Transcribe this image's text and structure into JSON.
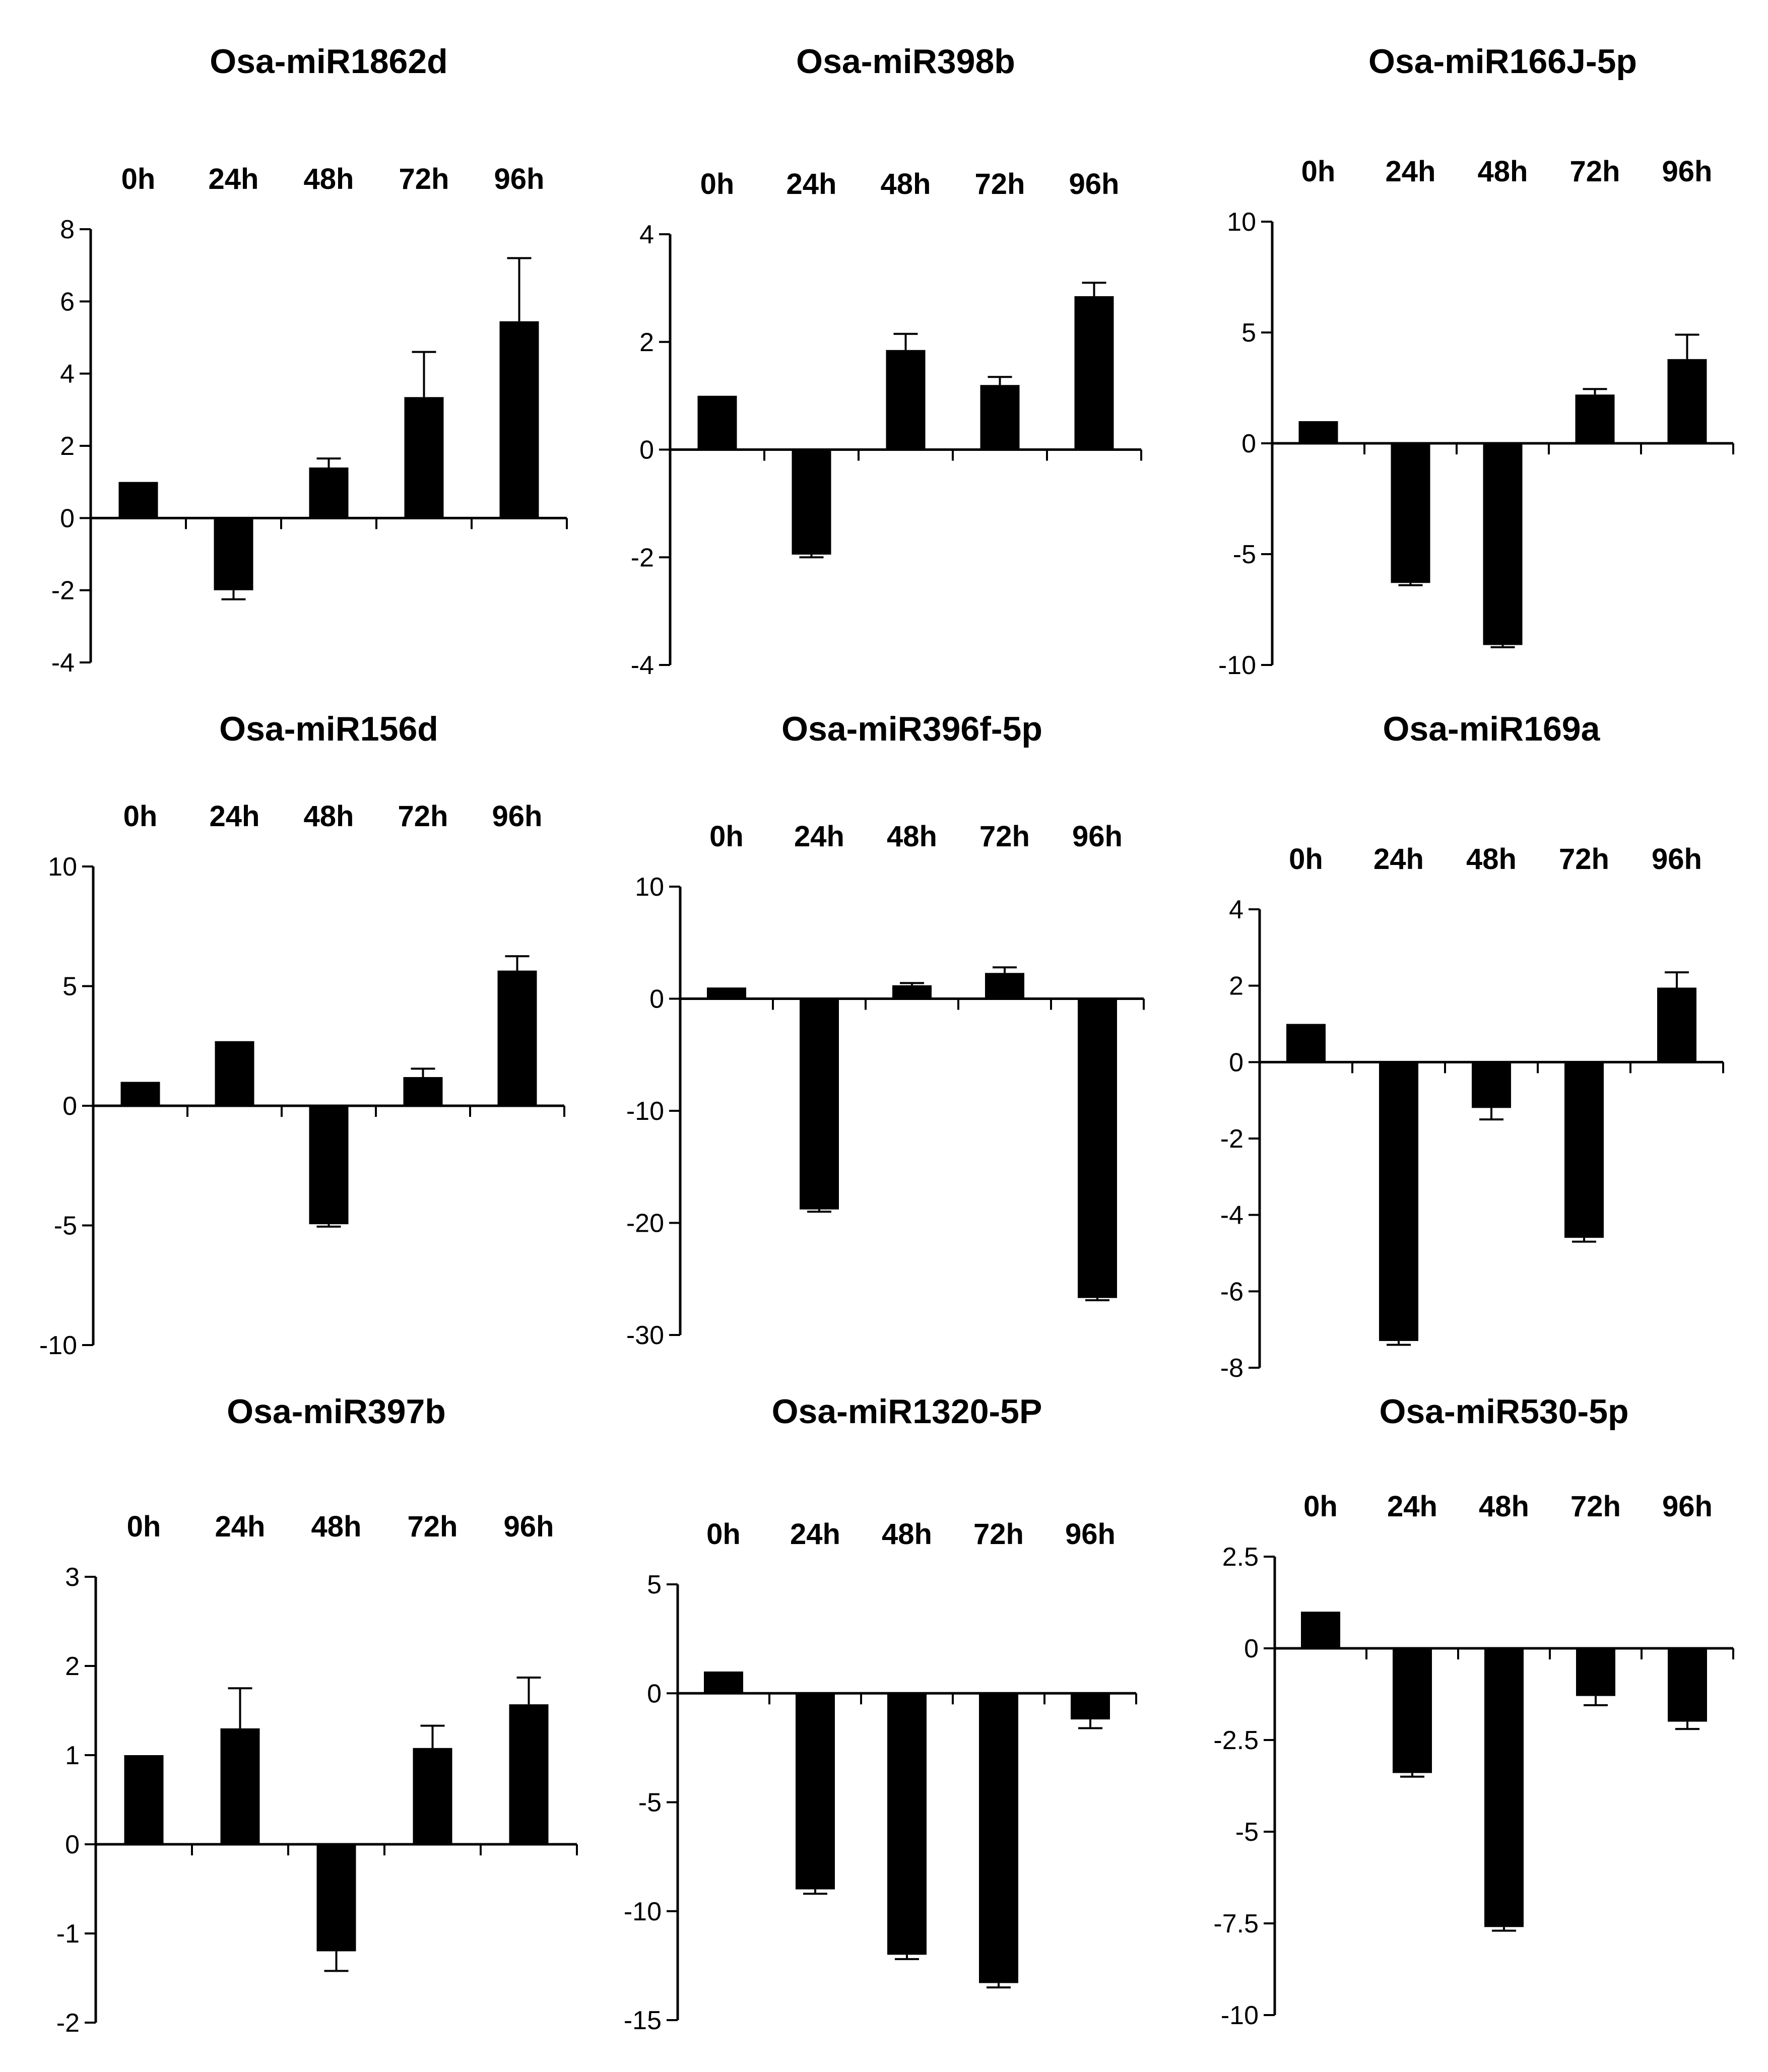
{
  "colors": {
    "bar": "#000000",
    "axis": "#000000",
    "background": "#ffffff"
  },
  "chart_data": [
    {
      "type": "bar",
      "title": "Osa-miR1862d",
      "categories": [
        "0h",
        "24h",
        "48h",
        "72h",
        "96h"
      ],
      "values": [
        1.0,
        -2.0,
        1.4,
        3.35,
        5.45
      ],
      "errors": [
        0,
        0.25,
        0.25,
        1.25,
        1.75
      ],
      "ylim": [
        -4,
        8
      ],
      "yticks": [
        -4,
        -2,
        0,
        2,
        4,
        6,
        8
      ],
      "xlabel": "",
      "ylabel": "",
      "grid": false,
      "legend": false
    },
    {
      "type": "bar",
      "title": "Osa-miR398b",
      "categories": [
        "0h",
        "24h",
        "48h",
        "72h",
        "96h"
      ],
      "values": [
        1.0,
        -1.95,
        1.85,
        1.2,
        2.85
      ],
      "errors": [
        0,
        0.05,
        0.3,
        0.15,
        0.25
      ],
      "ylim": [
        -4,
        4
      ],
      "yticks": [
        -4,
        -2,
        0,
        2,
        4
      ],
      "xlabel": "",
      "ylabel": "",
      "grid": false,
      "legend": false
    },
    {
      "type": "bar",
      "title": "Osa-miR166J-5p",
      "categories": [
        "0h",
        "24h",
        "48h",
        "72h",
        "96h"
      ],
      "values": [
        1.0,
        -6.3,
        -9.1,
        2.2,
        3.8
      ],
      "errors": [
        0,
        0.1,
        0.1,
        0.25,
        1.1
      ],
      "ylim": [
        -10,
        10
      ],
      "yticks": [
        -10,
        -5,
        0,
        5,
        10
      ],
      "xlabel": "",
      "ylabel": "",
      "grid": false,
      "legend": false
    },
    {
      "type": "bar",
      "title": "Osa-miR156d",
      "categories": [
        "0h",
        "24h",
        "48h",
        "72h",
        "96h"
      ],
      "values": [
        1.0,
        2.7,
        -4.95,
        1.2,
        5.65
      ],
      "errors": [
        0,
        0,
        0.1,
        0.35,
        0.6
      ],
      "ylim": [
        -10,
        10
      ],
      "yticks": [
        -10,
        -5,
        0,
        5,
        10
      ],
      "xlabel": "",
      "ylabel": "",
      "grid": false,
      "legend": false
    },
    {
      "type": "bar",
      "title": "Osa-miR396f-5p",
      "categories": [
        "0h",
        "24h",
        "48h",
        "72h",
        "96h"
      ],
      "values": [
        1.0,
        -18.8,
        1.2,
        2.3,
        -26.7
      ],
      "errors": [
        0,
        0.2,
        0.2,
        0.5,
        0.2
      ],
      "ylim": [
        -30,
        10
      ],
      "yticks": [
        -30,
        -20,
        -10,
        0,
        10
      ],
      "xlabel": "",
      "ylabel": "",
      "grid": false,
      "legend": false
    },
    {
      "type": "bar",
      "title": "Osa-miR169a",
      "categories": [
        "0h",
        "24h",
        "48h",
        "72h",
        "96h"
      ],
      "values": [
        1.0,
        -7.3,
        -1.2,
        -4.6,
        1.95
      ],
      "errors": [
        0,
        0.1,
        0.3,
        0.1,
        0.4
      ],
      "ylim": [
        -8,
        4
      ],
      "yticks": [
        -8,
        -6,
        -4,
        -2,
        0,
        2,
        4
      ],
      "xlabel": "",
      "ylabel": "",
      "grid": false,
      "legend": false
    },
    {
      "type": "bar",
      "title": "Osa-miR397b",
      "categories": [
        "0h",
        "24h",
        "48h",
        "72h",
        "96h"
      ],
      "values": [
        1.0,
        1.3,
        -1.2,
        1.08,
        1.57
      ],
      "errors": [
        0,
        0.45,
        0.22,
        0.25,
        0.3
      ],
      "ylim": [
        -2,
        3
      ],
      "yticks": [
        -2,
        -1,
        0,
        1,
        2,
        3
      ],
      "xlabel": "",
      "ylabel": "",
      "grid": false,
      "legend": false
    },
    {
      "type": "bar",
      "title": "Osa-miR1320-5P",
      "categories": [
        "0h",
        "24h",
        "48h",
        "72h",
        "96h"
      ],
      "values": [
        1.0,
        -9.0,
        -12.0,
        -13.3,
        -1.2
      ],
      "errors": [
        0,
        0.2,
        0.2,
        0.2,
        0.4
      ],
      "ylim": [
        -15,
        5
      ],
      "yticks": [
        -15,
        -10,
        -5,
        0,
        5
      ],
      "xlabel": "",
      "ylabel": "",
      "grid": false,
      "legend": false
    },
    {
      "type": "bar",
      "title": "Osa-miR530-5p",
      "categories": [
        "0h",
        "24h",
        "48h",
        "72h",
        "96h"
      ],
      "values": [
        1.0,
        -3.4,
        -7.6,
        -1.3,
        -2.0
      ],
      "errors": [
        0,
        0.1,
        0.1,
        0.25,
        0.2
      ],
      "ylim": [
        -10,
        2.5
      ],
      "yticks": [
        -10,
        -7.5,
        -5,
        -2.5,
        0,
        2.5
      ],
      "xlabel": "",
      "ylabel": "",
      "grid": false,
      "legend": false
    }
  ]
}
